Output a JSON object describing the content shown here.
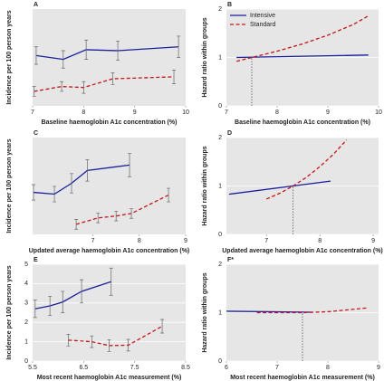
{
  "chart_data": [
    {
      "type": "line",
      "label": "A",
      "xlabel": "Baseline haemoglobin A1c concentration (%)",
      "ylabel": "Incidence per 100 person years",
      "xlim": [
        7,
        10
      ],
      "xticks": [
        7,
        8,
        9,
        10
      ],
      "ylim": [
        0,
        5
      ],
      "series": [
        {
          "color": "#1b1f9c",
          "linestyle": "solid",
          "x": [
            7.07,
            7.6,
            8.05,
            8.67,
            9.86
          ],
          "values": [
            2.6,
            2.4,
            2.9,
            2.85,
            3.05
          ],
          "errors": [
            0.45,
            0.45,
            0.5,
            0.5,
            0.55
          ]
        },
        {
          "color": "#c4161c",
          "linestyle": "dashed",
          "x": [
            7.03,
            7.57,
            8.0,
            8.57,
            9.77
          ],
          "values": [
            0.75,
            1.0,
            0.95,
            1.4,
            1.5
          ],
          "errors": [
            0.25,
            0.25,
            0.3,
            0.3,
            0.35
          ]
        }
      ]
    },
    {
      "type": "line",
      "label": "B",
      "xlabel": "Baseline haemoglobin A1c concentration (%)",
      "ylabel": "Hazard ratio within groups",
      "xlim": [
        7,
        10
      ],
      "xticks": [
        7,
        8,
        9,
        10
      ],
      "ylim": [
        0,
        2
      ],
      "yticks": [
        0,
        1,
        2
      ],
      "legend": "upper left",
      "vline_x": 7.5,
      "vline_top": 1,
      "series": [
        {
          "name": "Intensive",
          "color": "#1b1f9c",
          "linestyle": "solid",
          "x": [
            7.2,
            9.8
          ],
          "values": [
            1.0,
            1.05
          ]
        },
        {
          "name": "Standard",
          "color": "#c4161c",
          "linestyle": "dashed",
          "x": [
            7.2,
            7.5,
            8,
            8.5,
            9,
            9.5,
            9.8
          ],
          "values": [
            0.92,
            1.0,
            1.13,
            1.28,
            1.46,
            1.68,
            1.86
          ]
        }
      ]
    },
    {
      "type": "line",
      "label": "C",
      "xlabel": "Updated average haemoglobin A1c concentration (%)",
      "ylabel": "Incidence per 100 person years",
      "xlim": [
        5.7,
        9.0
      ],
      "xticks": [
        7,
        8,
        9
      ],
      "ylim": [
        0,
        5
      ],
      "series": [
        {
          "color": "#1b1f9c",
          "linestyle": "solid",
          "x": [
            5.72,
            6.17,
            6.54,
            6.88,
            7.79
          ],
          "values": [
            2.17,
            2.08,
            2.64,
            3.3,
            3.58
          ],
          "errors": [
            0.4,
            0.4,
            0.5,
            0.55,
            0.6
          ]
        },
        {
          "color": "#c4161c",
          "linestyle": "dashed",
          "x": [
            6.64,
            7.11,
            7.5,
            7.83,
            8.63
          ],
          "values": [
            0.52,
            0.85,
            0.95,
            1.08,
            2.03
          ],
          "errors": [
            0.25,
            0.25,
            0.25,
            0.25,
            0.35
          ]
        }
      ]
    },
    {
      "type": "line",
      "label": "D",
      "xlabel": "Updated average haemoglobin A1c concentration (%)",
      "ylabel": "Hazard ratio within groups",
      "xlim": [
        6.25,
        9.1
      ],
      "xticks": [
        7,
        8,
        9
      ],
      "ylim": [
        0,
        2
      ],
      "yticks": [
        0,
        1,
        2
      ],
      "vline_x": 7.5,
      "vline_top": 1,
      "series": [
        {
          "color": "#1b1f9c",
          "linestyle": "solid",
          "x": [
            6.3,
            8.2
          ],
          "values": [
            0.83,
            1.1
          ]
        },
        {
          "color": "#c4161c",
          "linestyle": "dashed",
          "x": [
            7.0,
            7.25,
            7.5,
            7.75,
            8.0,
            8.25,
            8.5
          ],
          "values": [
            0.73,
            0.85,
            1.0,
            1.18,
            1.4,
            1.65,
            1.95
          ]
        }
      ]
    },
    {
      "type": "line",
      "label": "E",
      "xlabel": "Most recent haemoglobin A1c measurement (%)",
      "ylabel": "Incidence per 100 person years",
      "xlim": [
        5.5,
        8.5
      ],
      "xticks": [
        5.5,
        6.5,
        7.5,
        8.5
      ],
      "ylim": [
        0,
        5
      ],
      "yticks": [
        0,
        1,
        2,
        3,
        4,
        5
      ],
      "series": [
        {
          "color": "#1b1f9c",
          "linestyle": "solid",
          "x": [
            5.55,
            5.84,
            6.09,
            6.46,
            7.04
          ],
          "values": [
            2.7,
            2.85,
            3.05,
            3.6,
            4.1
          ],
          "errors": [
            0.45,
            0.5,
            0.55,
            0.6,
            0.7
          ]
        },
        {
          "color": "#c4161c",
          "linestyle": "dashed",
          "x": [
            6.2,
            6.66,
            7.0,
            7.375,
            8.04
          ],
          "values": [
            1.08,
            1.0,
            0.8,
            0.82,
            1.8
          ],
          "errors": [
            0.3,
            0.3,
            0.3,
            0.3,
            0.35
          ]
        }
      ]
    },
    {
      "type": "line",
      "label": "F*",
      "xlabel": "Most recent haemoglobin A1c measurement (%)",
      "ylabel": "Hazard ratio within groups",
      "xlim": [
        6,
        9
      ],
      "xticks": [
        6,
        7,
        8,
        9
      ],
      "ylim": [
        0,
        2
      ],
      "yticks": [
        0,
        1,
        2
      ],
      "vline_x": 7.5,
      "vline_top": 1,
      "series": [
        {
          "color": "#1b1f9c",
          "linestyle": "solid",
          "x": [
            6.0,
            7.7
          ],
          "values": [
            1.03,
            1.01
          ]
        },
        {
          "color": "#c4161c",
          "linestyle": "dashed",
          "x": [
            6.6,
            7.5,
            8.0,
            8.5,
            8.8
          ],
          "values": [
            1.0,
            1.0,
            1.02,
            1.07,
            1.1
          ]
        }
      ]
    }
  ]
}
